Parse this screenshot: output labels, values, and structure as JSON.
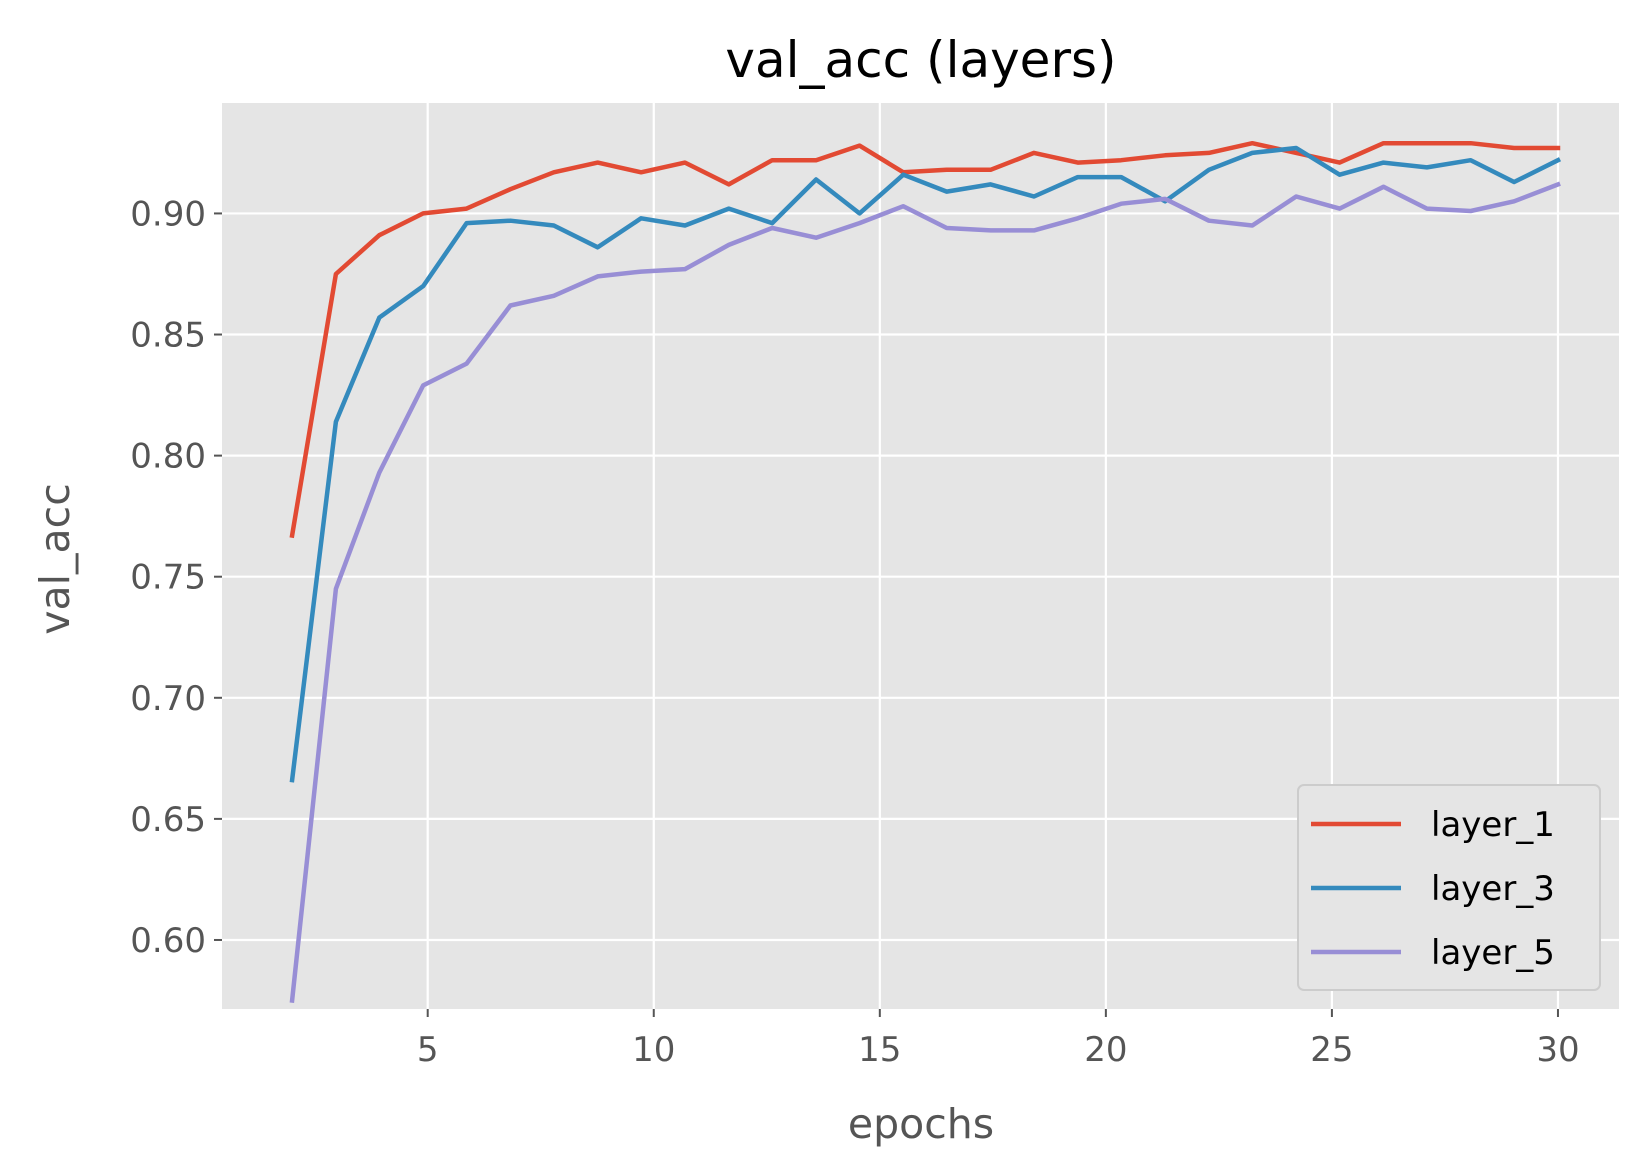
{
  "chart_data": {
    "type": "line",
    "title": "val_acc (layers)",
    "xlabel": "epochs",
    "ylabel": "val_acc",
    "xlim": [
      0.45,
      31.35
    ],
    "ylim": [
      0.5715,
      0.9456
    ],
    "xticks": [
      5,
      10,
      15,
      20,
      25,
      30
    ],
    "xtick_labels": [
      "5",
      "10",
      "15",
      "20",
      "25",
      "30"
    ],
    "yticks": [
      0.6,
      0.65,
      0.7,
      0.75,
      0.8,
      0.85,
      0.9
    ],
    "ytick_labels": [
      "0.60",
      "0.65",
      "0.70",
      "0.75",
      "0.80",
      "0.85",
      "0.90"
    ],
    "grid": true,
    "legend_position": "lower-right",
    "x": [
      2,
      2.97,
      3.93,
      4.9,
      5.86,
      6.83,
      7.79,
      8.76,
      9.72,
      10.69,
      11.66,
      12.62,
      13.59,
      14.55,
      15.52,
      16.48,
      17.45,
      18.41,
      19.38,
      20.34,
      21.31,
      22.28,
      23.24,
      24.21,
      25.17,
      26.14,
      27.1,
      28.07,
      29.03,
      30
    ],
    "series": [
      {
        "name": "layer_1",
        "color": "#e24a33",
        "values": [
          0.767,
          0.875,
          0.891,
          0.9,
          0.902,
          0.91,
          0.917,
          0.921,
          0.917,
          0.921,
          0.912,
          0.922,
          0.922,
          0.928,
          0.917,
          0.918,
          0.918,
          0.925,
          0.921,
          0.922,
          0.924,
          0.925,
          0.929,
          0.925,
          0.921,
          0.929,
          0.929,
          0.929,
          0.927,
          0.927
        ]
      },
      {
        "name": "layer_3",
        "color": "#348abd",
        "values": [
          0.666,
          0.814,
          0.857,
          0.87,
          0.896,
          0.897,
          0.895,
          0.886,
          0.898,
          0.895,
          0.902,
          0.896,
          0.914,
          0.9,
          0.916,
          0.909,
          0.912,
          0.907,
          0.915,
          0.915,
          0.905,
          0.918,
          0.925,
          0.927,
          0.916,
          0.921,
          0.919,
          0.922,
          0.913,
          0.922
        ]
      },
      {
        "name": "layer_5",
        "color": "#988ed5",
        "values": [
          0.575,
          0.745,
          0.793,
          0.829,
          0.838,
          0.862,
          0.866,
          0.874,
          0.876,
          0.877,
          0.887,
          0.894,
          0.89,
          0.896,
          0.903,
          0.894,
          0.893,
          0.893,
          0.898,
          0.904,
          0.906,
          0.897,
          0.895,
          0.907,
          0.902,
          0.911,
          0.902,
          0.901,
          0.905,
          0.912
        ]
      }
    ]
  }
}
